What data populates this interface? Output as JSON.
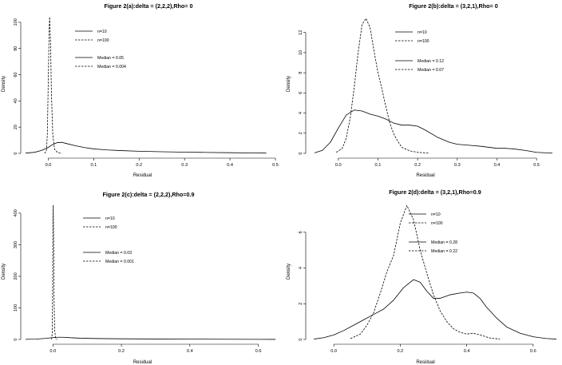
{
  "figure": {
    "description_free": true
  },
  "chart_data": [
    {
      "type": "line",
      "title": "Figure 2(a):delta = (2,2,2),Rho= 0",
      "xlabel": "Residual",
      "ylabel": "Density",
      "xlim": [
        -0.05,
        0.5
      ],
      "ylim": [
        0,
        106
      ],
      "xticks": [
        0.0,
        0.1,
        0.2,
        0.3,
        0.4,
        0.5
      ],
      "xtick_labels": [
        "0.0",
        "0.1",
        "0.2",
        "0.3",
        "0.4",
        "0.5"
      ],
      "yticks": [
        0,
        20,
        40,
        60,
        80,
        100
      ],
      "ytick_labels": [
        "0",
        "20",
        "40",
        "60",
        "80",
        "100"
      ],
      "legend": [
        {
          "label": "n=10",
          "style": "solid"
        },
        {
          "label": "n=100",
          "style": "dashed"
        },
        {
          "label": "Median = 0.05",
          "style": "solid"
        },
        {
          "label": "Median = 0.004",
          "style": "dashed"
        }
      ],
      "series": [
        {
          "name": "n=10",
          "style": "solid",
          "x": [
            -0.05,
            -0.03,
            -0.015,
            0.0,
            0.01,
            0.02,
            0.03,
            0.04,
            0.06,
            0.08,
            0.1,
            0.13,
            0.16,
            0.2,
            0.25,
            0.3,
            0.35,
            0.4,
            0.45,
            0.48
          ],
          "y": [
            0.2,
            0.8,
            2.2,
            4.5,
            6.8,
            8.2,
            8.4,
            7.5,
            5.8,
            4.4,
            3.4,
            2.6,
            2.1,
            1.6,
            1.2,
            0.9,
            0.7,
            0.5,
            0.3,
            0.2
          ]
        },
        {
          "name": "n=100",
          "style": "dashed",
          "x": [
            -0.008,
            -0.004,
            -0.002,
            0.0,
            0.002,
            0.003,
            0.005,
            0.007,
            0.01,
            0.014,
            0.02,
            0.025,
            0.03
          ],
          "y": [
            0,
            2,
            15,
            55,
            95,
            104,
            85,
            45,
            14,
            3,
            0.8,
            0.3,
            0
          ]
        }
      ]
    },
    {
      "type": "line",
      "title": "Figure 2(b):delta = (3,2,1),Rho= 0",
      "xlabel": "Residual",
      "ylabel": "Density",
      "xlim": [
        -0.07,
        0.55
      ],
      "ylim": [
        0,
        13.8
      ],
      "xticks": [
        0.0,
        0.1,
        0.2,
        0.3,
        0.4,
        0.5
      ],
      "xtick_labels": [
        "0.0",
        "0.1",
        "0.2",
        "0.3",
        "0.4",
        "0.5"
      ],
      "yticks": [
        0,
        2,
        4,
        6,
        8,
        10,
        12
      ],
      "ytick_labels": [
        "0",
        "2",
        "4",
        "6",
        "8",
        "10",
        "12"
      ],
      "legend": [
        {
          "label": "n=10",
          "style": "solid"
        },
        {
          "label": "n=100",
          "style": "dashed"
        },
        {
          "label": "Median = 0.12",
          "style": "solid"
        },
        {
          "label": "Median = 0.07",
          "style": "dashed"
        }
      ],
      "series": [
        {
          "name": "n=10",
          "style": "solid",
          "x": [
            -0.06,
            -0.04,
            -0.02,
            0.0,
            0.02,
            0.04,
            0.06,
            0.08,
            0.1,
            0.12,
            0.14,
            0.16,
            0.18,
            0.2,
            0.22,
            0.25,
            0.28,
            0.3,
            0.33,
            0.36,
            0.38,
            0.4,
            0.42,
            0.44,
            0.47,
            0.5,
            0.54
          ],
          "y": [
            0.05,
            0.3,
            1.1,
            2.5,
            3.8,
            4.3,
            4.2,
            3.9,
            3.7,
            3.4,
            3.0,
            2.8,
            2.8,
            2.7,
            2.3,
            1.6,
            1.1,
            0.9,
            0.8,
            0.7,
            0.6,
            0.5,
            0.5,
            0.45,
            0.3,
            0.1,
            0.02
          ]
        },
        {
          "name": "n=100",
          "style": "dashed",
          "x": [
            -0.005,
            0.01,
            0.02,
            0.03,
            0.04,
            0.05,
            0.06,
            0.07,
            0.08,
            0.09,
            0.1,
            0.11,
            0.12,
            0.13,
            0.14,
            0.15,
            0.16,
            0.18,
            0.2,
            0.23
          ],
          "y": [
            0.1,
            0.5,
            1.5,
            3.5,
            6.5,
            10.0,
            12.8,
            13.4,
            12.5,
            10.2,
            8.0,
            6.4,
            4.6,
            3.0,
            1.9,
            1.2,
            0.6,
            0.25,
            0.1,
            0.02
          ]
        }
      ]
    },
    {
      "type": "line",
      "title": "Figure 2(c):delta = (2,2,2),Rho=0.9",
      "xlabel": "Residual",
      "ylabel": "Density",
      "xlim": [
        -0.08,
        0.65
      ],
      "ylim": [
        0,
        430
      ],
      "xticks": [
        0.0,
        0.2,
        0.4,
        0.6
      ],
      "xtick_labels": [
        "0.0",
        "0.2",
        "0.4",
        "0.6"
      ],
      "yticks": [
        0,
        100,
        200,
        300,
        400
      ],
      "ytick_labels": [
        "0",
        "100",
        "200",
        "300",
        "400"
      ],
      "legend": [
        {
          "label": "n=10",
          "style": "solid"
        },
        {
          "label": "n=100",
          "style": "dashed"
        },
        {
          "label": "Median = 0.03",
          "style": "solid"
        },
        {
          "label": "Median = 0.001",
          "style": "dashed"
        }
      ],
      "series": [
        {
          "name": "n=10",
          "style": "solid",
          "x": [
            -0.08,
            -0.05,
            -0.02,
            0.0,
            0.015,
            0.03,
            0.05,
            0.08,
            0.12,
            0.2,
            0.3,
            0.4,
            0.5,
            0.6,
            0.65
          ],
          "y": [
            0.3,
            1.0,
            3.5,
            6.0,
            7.0,
            7.0,
            5.5,
            4.0,
            3.0,
            2.0,
            1.4,
            1.0,
            0.7,
            0.4,
            0.2
          ]
        },
        {
          "name": "n=100",
          "style": "dashed",
          "x": [
            -0.004,
            -0.002,
            -0.001,
            0.0,
            0.001,
            0.002,
            0.003,
            0.005,
            0.008,
            0.012
          ],
          "y": [
            0,
            20,
            150,
            380,
            425,
            330,
            150,
            30,
            3,
            0
          ]
        }
      ]
    },
    {
      "type": "line",
      "title": "Figure 2(d):delta = (3,2,1),Rho=0.9",
      "xlabel": "Residual",
      "ylabel": "Density",
      "xlim": [
        -0.07,
        0.67
      ],
      "ylim": [
        0,
        7.6
      ],
      "xticks": [
        0.0,
        0.2,
        0.4,
        0.6
      ],
      "xtick_labels": [
        "0.0",
        "0.2",
        "0.4",
        "0.6"
      ],
      "yticks": [
        0,
        2,
        4,
        6
      ],
      "ytick_labels": [
        "0",
        "2",
        "4",
        "6"
      ],
      "legend": [
        {
          "label": "n=10",
          "style": "solid"
        },
        {
          "label": "n=100",
          "style": "dashed"
        },
        {
          "label": "Median = 0.28",
          "style": "solid"
        },
        {
          "label": "Median = 0.22",
          "style": "dashed"
        }
      ],
      "series": [
        {
          "name": "n=10",
          "style": "solid",
          "x": [
            -0.06,
            -0.03,
            0.0,
            0.03,
            0.06,
            0.09,
            0.12,
            0.15,
            0.18,
            0.21,
            0.24,
            0.26,
            0.28,
            0.3,
            0.32,
            0.35,
            0.38,
            0.4,
            0.42,
            0.44,
            0.46,
            0.49,
            0.52,
            0.56,
            0.6,
            0.64,
            0.67
          ],
          "y": [
            0.02,
            0.1,
            0.25,
            0.5,
            0.8,
            1.1,
            1.4,
            1.7,
            2.2,
            2.9,
            3.35,
            3.2,
            2.7,
            2.3,
            2.3,
            2.5,
            2.6,
            2.65,
            2.6,
            2.3,
            1.8,
            1.2,
            0.7,
            0.35,
            0.15,
            0.05,
            0.02
          ]
        },
        {
          "name": "n=100",
          "style": "dashed",
          "x": [
            0.05,
            0.08,
            0.1,
            0.12,
            0.14,
            0.16,
            0.18,
            0.2,
            0.22,
            0.24,
            0.26,
            0.28,
            0.3,
            0.32,
            0.34,
            0.36,
            0.38,
            0.4,
            0.42,
            0.44,
            0.47,
            0.5
          ],
          "y": [
            0.05,
            0.3,
            0.8,
            1.5,
            2.6,
            3.8,
            4.7,
            6.5,
            7.5,
            6.7,
            5.0,
            3.7,
            2.5,
            1.6,
            1.0,
            0.6,
            0.4,
            0.3,
            0.35,
            0.25,
            0.08,
            0.02
          ]
        }
      ]
    }
  ]
}
